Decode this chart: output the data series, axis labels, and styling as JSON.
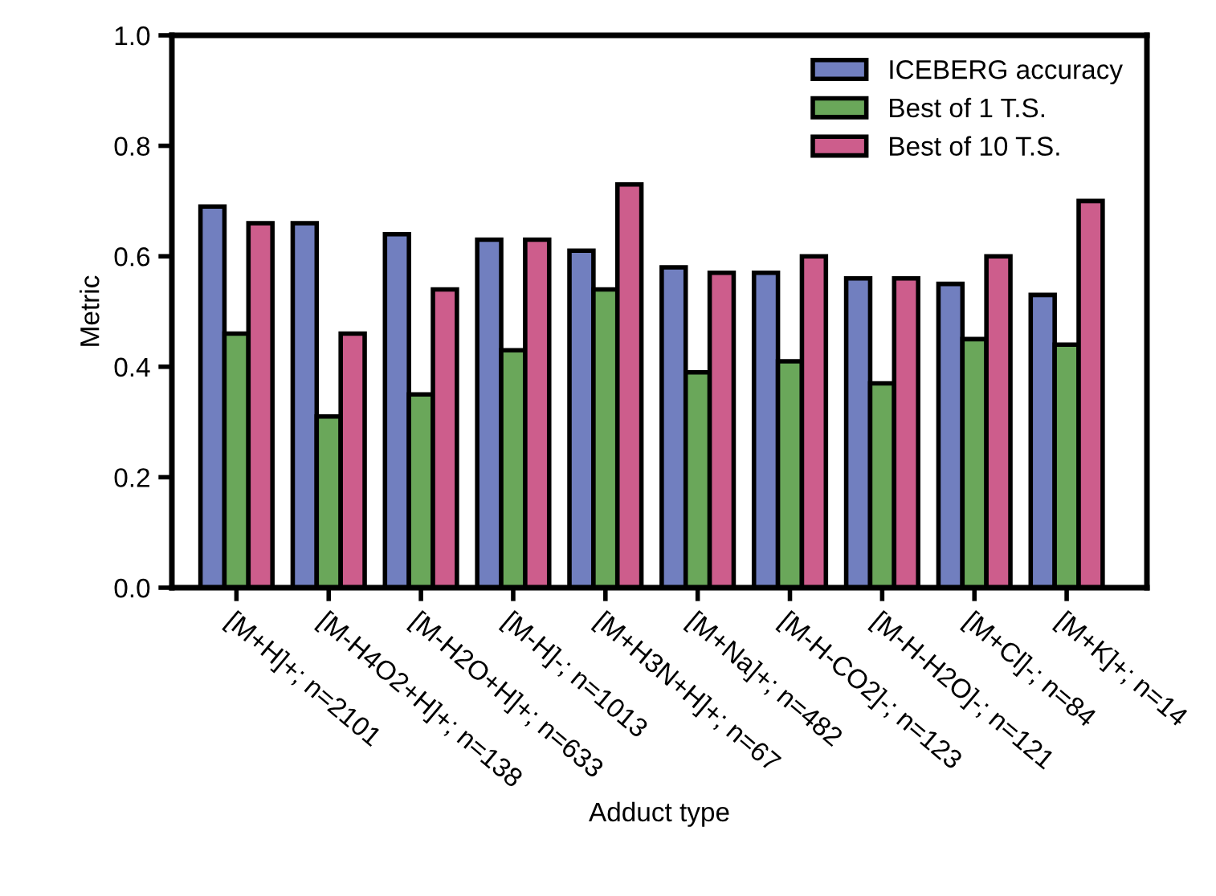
{
  "chart_data": {
    "type": "bar",
    "xlabel": "Adduct type",
    "ylabel": "Metric",
    "categories": [
      "[M+H]+; n=2101",
      "[M-H4O2+H]+; n=138",
      "[M-H2O+H]+; n=633",
      "[M-H]-; n=1013",
      "[M+H3N+H]+; n=67",
      "[M+Na]+; n=482",
      "[M-H-CO2]-; n=123",
      "[M-H-H2O]-; n=121",
      "[M+Cl]-; n=84",
      "[M+K]+; n=14"
    ],
    "series": [
      {
        "name": "ICEBERG accuracy",
        "color": "#717fbf",
        "values": [
          0.69,
          0.66,
          0.64,
          0.63,
          0.61,
          0.58,
          0.57,
          0.56,
          0.55,
          0.53
        ]
      },
      {
        "name": "Best of 1 T.S.",
        "color": "#6aa75a",
        "values": [
          0.46,
          0.31,
          0.35,
          0.43,
          0.54,
          0.39,
          0.41,
          0.37,
          0.45,
          0.44
        ]
      },
      {
        "name": "Best of 10 T.S.",
        "color": "#cd5d8c",
        "values": [
          0.66,
          0.46,
          0.54,
          0.63,
          0.73,
          0.57,
          0.6,
          0.56,
          0.6,
          0.7
        ]
      }
    ],
    "ylim": [
      0,
      1.0
    ],
    "yticks": [
      {
        "value": 0,
        "label": "0.0"
      },
      {
        "value": 0.2,
        "label": "0.2"
      },
      {
        "value": 0.4,
        "label": "0.4"
      },
      {
        "value": 0.6,
        "label": "0.6"
      },
      {
        "value": 0.8,
        "label": "0.8"
      },
      {
        "value": 1.0,
        "label": "1.0"
      }
    ],
    "grid": false,
    "legend": "top right"
  }
}
